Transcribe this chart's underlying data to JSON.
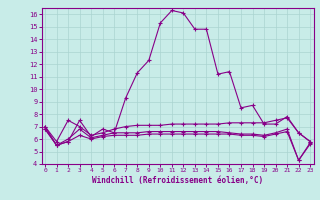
{
  "xlabel": "Windchill (Refroidissement éolien,°C)",
  "background_color": "#c8ece8",
  "grid_color": "#aad4d0",
  "line_color": "#880088",
  "spine_color": "#880088",
  "x_values": [
    0,
    1,
    2,
    3,
    4,
    5,
    6,
    7,
    8,
    9,
    10,
    11,
    12,
    13,
    14,
    15,
    16,
    17,
    18,
    19,
    20,
    21,
    22,
    23
  ],
  "ylim": [
    4,
    16.5
  ],
  "xlim": [
    -0.3,
    23.3
  ],
  "yticks": [
    4,
    5,
    6,
    7,
    8,
    9,
    10,
    11,
    12,
    13,
    14,
    15,
    16
  ],
  "xticks": [
    0,
    1,
    2,
    3,
    4,
    5,
    6,
    7,
    8,
    9,
    10,
    11,
    12,
    13,
    14,
    15,
    16,
    17,
    18,
    19,
    20,
    21,
    22,
    23
  ],
  "series": [
    [
      7.0,
      5.5,
      5.8,
      7.5,
      6.2,
      6.8,
      6.5,
      9.3,
      11.3,
      12.3,
      15.3,
      16.3,
      16.1,
      14.8,
      14.8,
      11.2,
      11.4,
      8.5,
      8.7,
      7.2,
      7.2,
      7.8,
      6.5,
      5.8
    ],
    [
      7.0,
      5.8,
      7.5,
      7.0,
      6.3,
      6.5,
      6.8,
      7.0,
      7.1,
      7.1,
      7.1,
      7.2,
      7.2,
      7.2,
      7.2,
      7.2,
      7.3,
      7.3,
      7.3,
      7.3,
      7.5,
      7.7,
      6.5,
      5.8
    ],
    [
      6.8,
      5.5,
      6.0,
      6.8,
      6.1,
      6.3,
      6.5,
      6.5,
      6.5,
      6.6,
      6.6,
      6.6,
      6.6,
      6.6,
      6.6,
      6.6,
      6.5,
      6.4,
      6.4,
      6.3,
      6.5,
      6.8,
      4.3,
      5.7
    ],
    [
      6.8,
      5.5,
      5.8,
      6.3,
      6.0,
      6.2,
      6.3,
      6.3,
      6.3,
      6.4,
      6.4,
      6.4,
      6.4,
      6.4,
      6.4,
      6.4,
      6.4,
      6.3,
      6.3,
      6.2,
      6.4,
      6.6,
      4.3,
      5.6
    ]
  ]
}
